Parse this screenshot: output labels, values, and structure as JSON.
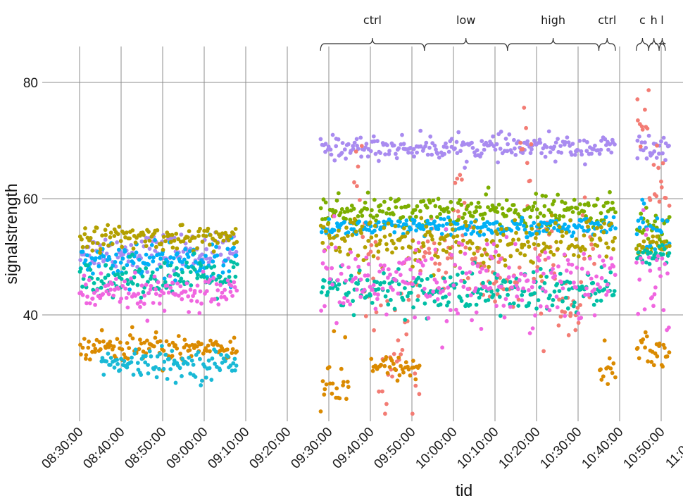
{
  "chart_data": {
    "type": "scatter",
    "title": "",
    "xlabel": "tid",
    "ylabel": "signalstrength",
    "x_type": "time",
    "xlim": [
      "08:30:00",
      "11:00:00"
    ],
    "ylim": [
      22,
      82
    ],
    "x_ticks": [
      "08:30:00",
      "08:40:00",
      "08:50:00",
      "09:00:00",
      "09:10:00",
      "09:20:00",
      "09:30:00",
      "09:40:00",
      "09:50:00",
      "10:00:00",
      "10:10:00",
      "10:20:00",
      "10:30:00",
      "10:40:00",
      "10:50:00",
      "11:00:00"
    ],
    "y_ticks": [
      40,
      60,
      80
    ],
    "grid": true,
    "legend": "none",
    "phases": [
      {
        "label": "ctrl",
        "start": "09:28:00",
        "end": "09:53:00"
      },
      {
        "label": "low",
        "start": "09:53:00",
        "end": "10:13:00"
      },
      {
        "label": "high",
        "start": "10:13:00",
        "end": "10:35:00"
      },
      {
        "label": "ctrl",
        "start": "10:35:00",
        "end": "10:39:00"
      },
      {
        "label": "c",
        "start": "10:44:00",
        "end": "10:47:00"
      },
      {
        "label": "h",
        "start": "10:47:00",
        "end": "10:49:30"
      },
      {
        "label": "l",
        "start": "10:49:30",
        "end": "10:51:00"
      }
    ],
    "series": [
      {
        "color": "#a98bf0",
        "segments": [
          {
            "start": "08:30:00",
            "end": "09:08:00",
            "mean": 51,
            "spread": 1.5
          },
          {
            "start": "09:28:00",
            "end": "10:39:00",
            "mean": 68.8,
            "spread": 1.0
          },
          {
            "start": "10:44:00",
            "end": "10:52:00",
            "mean": 68.5,
            "spread": 1.5
          }
        ]
      },
      {
        "color": "#f37c74",
        "segments": [
          {
            "start": "09:36:00",
            "end": "09:38:00",
            "mean": 62,
            "spread": 5
          },
          {
            "start": "09:38:00",
            "end": "09:42:00",
            "mean": 47,
            "spread": 4
          },
          {
            "start": "09:42:00",
            "end": "09:48:00",
            "mean": 32,
            "spread": 5
          },
          {
            "start": "09:48:00",
            "end": "09:52:00",
            "mean": 36,
            "spread": 7
          },
          {
            "start": "09:52:00",
            "end": "10:00:00",
            "mean": 50,
            "spread": 3
          },
          {
            "start": "10:00:00",
            "end": "10:03:00",
            "mean": 60,
            "spread": 6
          },
          {
            "start": "10:03:00",
            "end": "10:08:00",
            "mean": 49,
            "spread": 5
          },
          {
            "start": "10:08:00",
            "end": "10:16:00",
            "mean": 46,
            "spread": 3
          },
          {
            "start": "10:16:00",
            "end": "10:19:00",
            "mean": 63,
            "spread": 6
          },
          {
            "start": "10:19:00",
            "end": "10:25:00",
            "mean": 48,
            "spread": 5
          },
          {
            "start": "10:25:00",
            "end": "10:31:00",
            "mean": 41,
            "spread": 3
          },
          {
            "start": "10:31:00",
            "end": "10:34:00",
            "mean": 51,
            "spread": 3
          },
          {
            "start": "10:44:00",
            "end": "10:47:00",
            "mean": 73,
            "spread": 4
          },
          {
            "start": "10:47:00",
            "end": "10:52:00",
            "mean": 62,
            "spread": 3
          }
        ]
      },
      {
        "color": "#7cae00",
        "segments": [
          {
            "start": "09:28:00",
            "end": "10:39:00",
            "mean": 57.8,
            "spread": 1.3
          },
          {
            "start": "10:44:00",
            "end": "10:52:00",
            "mean": 55,
            "spread": 2
          }
        ]
      },
      {
        "color": "#00b0f6",
        "segments": [
          {
            "start": "08:30:00",
            "end": "09:08:00",
            "mean": 49.5,
            "spread": 1.8
          },
          {
            "start": "09:28:00",
            "end": "10:39:00",
            "mean": 55,
            "spread": 0.8
          },
          {
            "start": "10:44:00",
            "end": "10:52:00",
            "mean": 55,
            "spread": 3
          }
        ]
      },
      {
        "color": "#b3a000",
        "segments": [
          {
            "start": "08:30:00",
            "end": "09:08:00",
            "mean": 53.3,
            "spread": 1.0
          },
          {
            "start": "09:28:00",
            "end": "10:39:00",
            "mean": 52.5,
            "spread": 2.0
          },
          {
            "start": "10:44:00",
            "end": "10:52:00",
            "mean": 51.5,
            "spread": 1
          }
        ]
      },
      {
        "color": "#00bfa5",
        "segments": [
          {
            "start": "08:30:00",
            "end": "09:08:00",
            "mean": 46.5,
            "spread": 1.5
          },
          {
            "start": "09:28:00",
            "end": "10:39:00",
            "mean": 44,
            "spread": 2.0
          },
          {
            "start": "10:44:00",
            "end": "10:52:00",
            "mean": 50.5,
            "spread": 1
          }
        ]
      },
      {
        "color": "#f066e0",
        "segments": [
          {
            "start": "08:30:00",
            "end": "09:08:00",
            "mean": 43.5,
            "spread": 1.5
          },
          {
            "start": "09:28:00",
            "end": "10:39:00",
            "mean": 46,
            "spread": 3.5
          },
          {
            "start": "10:44:00",
            "end": "10:52:00",
            "mean": 48,
            "spread": 4
          }
        ]
      },
      {
        "color": "#da8a00",
        "segments": [
          {
            "start": "08:30:00",
            "end": "09:08:00",
            "mean": 34.5,
            "spread": 1.2
          },
          {
            "start": "09:28:00",
            "end": "09:35:00",
            "mean": 29,
            "spread": 3
          },
          {
            "start": "09:40:00",
            "end": "09:52:00",
            "mean": 31,
            "spread": 1
          },
          {
            "start": "10:35:00",
            "end": "10:39:00",
            "mean": 31,
            "spread": 2.5
          },
          {
            "start": "10:44:00",
            "end": "10:52:00",
            "mean": 34,
            "spread": 2
          }
        ]
      },
      {
        "color": "#19b9d6",
        "segments": [
          {
            "start": "08:35:00",
            "end": "09:08:00",
            "mean": 31.5,
            "spread": 1.2
          }
        ]
      }
    ]
  }
}
